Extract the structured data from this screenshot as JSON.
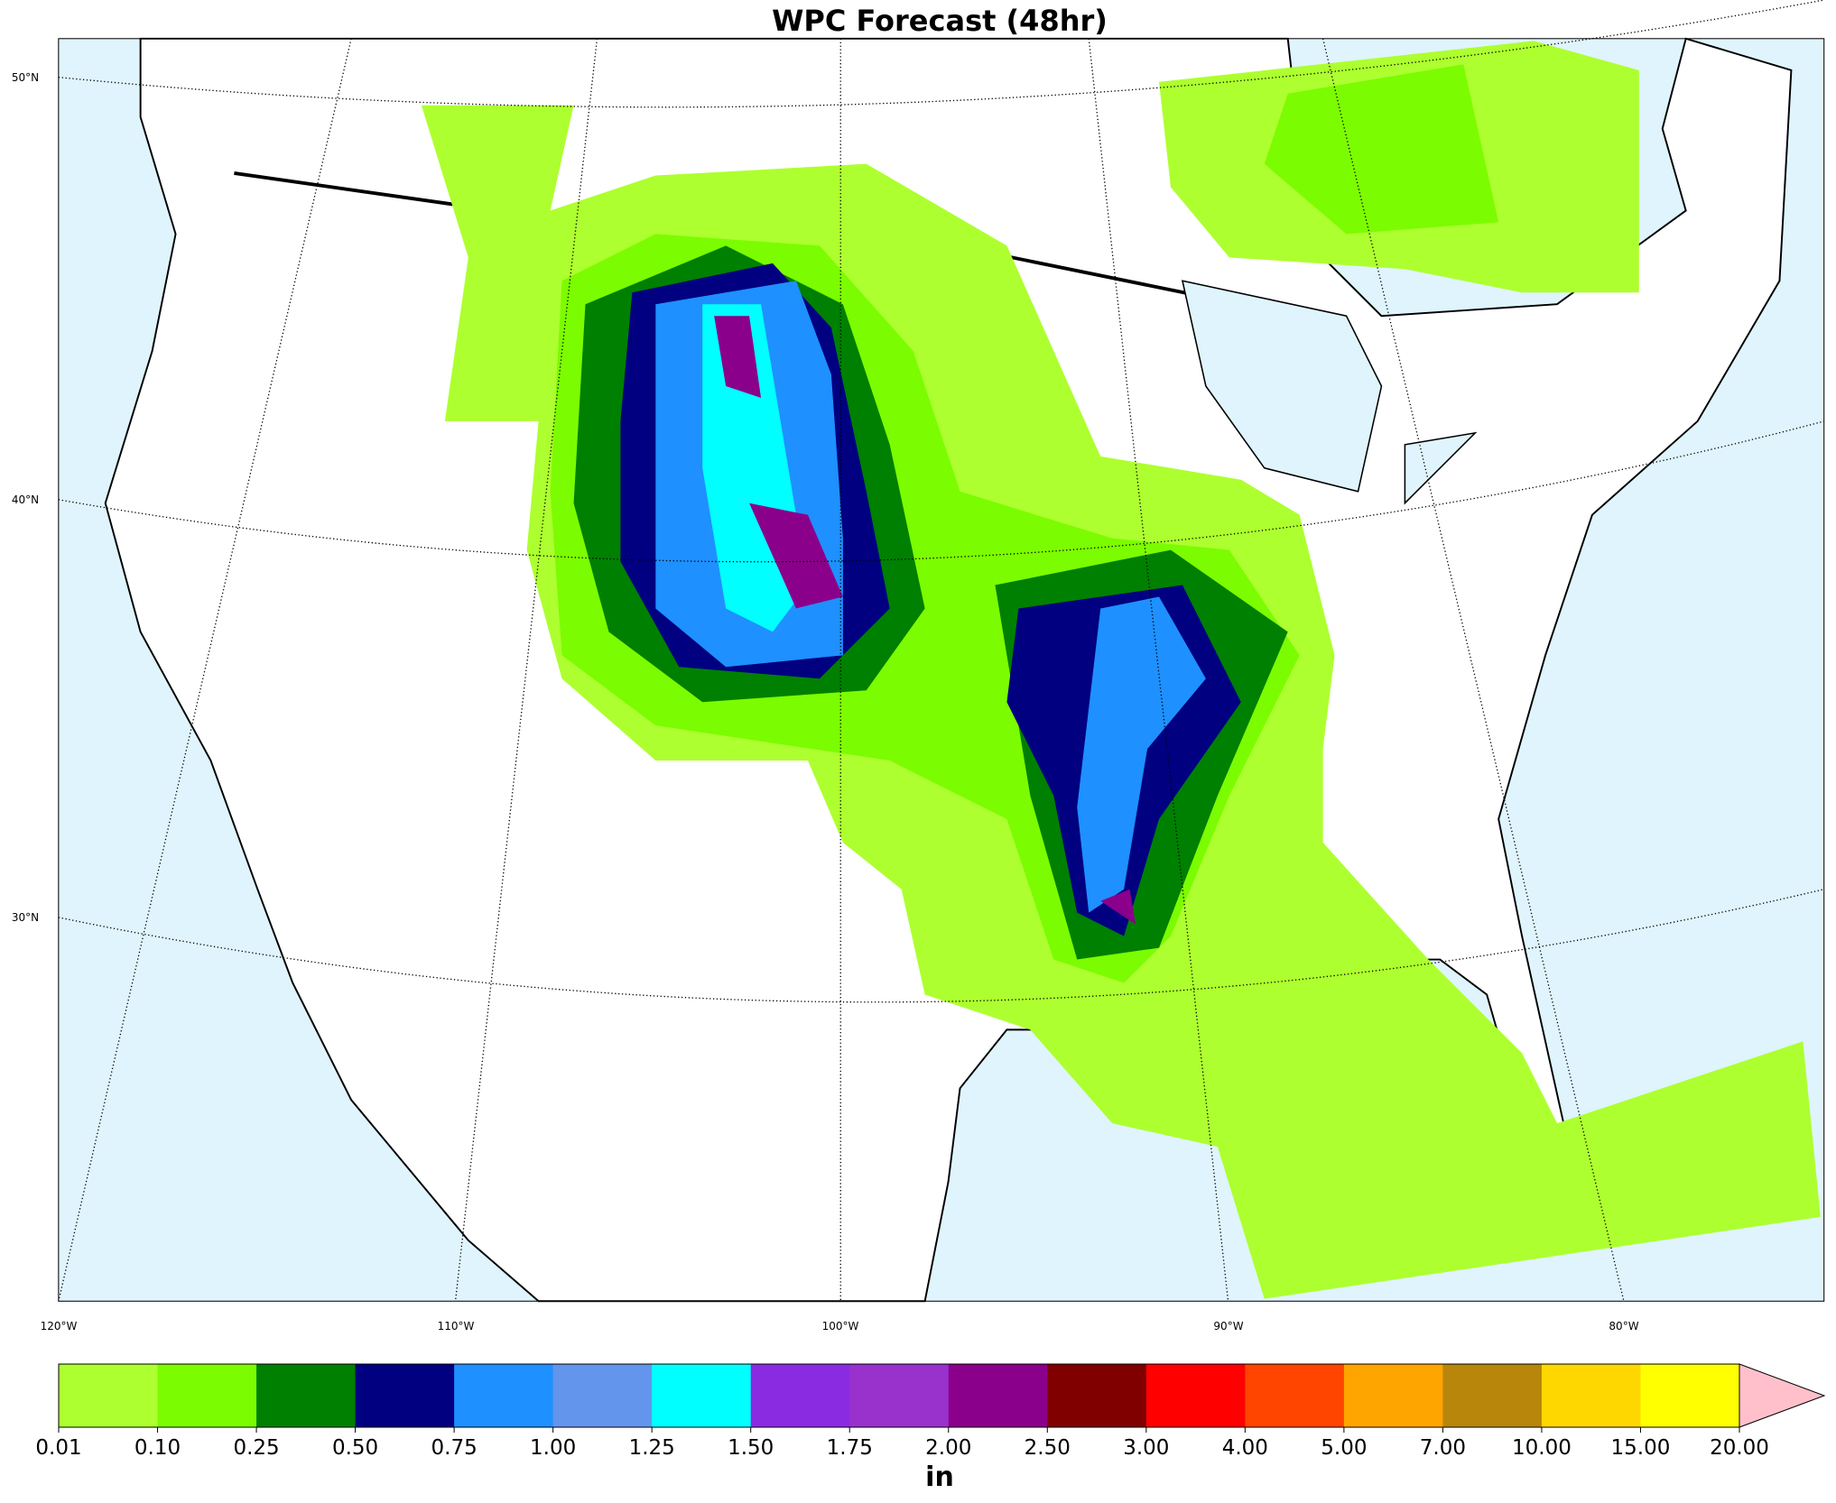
{
  "map": {
    "title": "WPC Forecast (48hr)",
    "lat_labels": [
      "50°N",
      "40°N",
      "30°N"
    ],
    "lon_labels": [
      "120°W",
      "110°W",
      "100°W",
      "90°W",
      "80°W"
    ],
    "colorbar": {
      "label": "in",
      "boundaries": [
        {
          "value": 0.01,
          "label": "0.01"
        },
        {
          "value": 0.1,
          "label": "0.10"
        },
        {
          "value": 0.25,
          "label": "0.25"
        },
        {
          "value": 0.5,
          "label": "0.50"
        },
        {
          "value": 0.75,
          "label": "0.75"
        },
        {
          "value": 1,
          "label": "1.00"
        },
        {
          "value": 1.25,
          "label": "1.25"
        },
        {
          "value": 1.5,
          "label": "1.50"
        },
        {
          "value": 1.75,
          "label": "1.75"
        },
        {
          "value": 2,
          "label": "2.00"
        },
        {
          "value": 2.5,
          "label": "2.50"
        },
        {
          "value": 3,
          "label": "3.00"
        },
        {
          "value": 4,
          "label": "4.00"
        },
        {
          "value": 5,
          "label": "5.00"
        },
        {
          "value": 7,
          "label": "7.00"
        },
        {
          "value": 10,
          "label": "10.00"
        },
        {
          "value": 15,
          "label": "15.00"
        },
        {
          "value": 20,
          "label": "20.00"
        }
      ],
      "colors": [
        "#adff2f",
        "#7cfc00",
        "#008000",
        "#000080",
        "#1e90ff",
        "#6495ed",
        "#00ffff",
        "#8a2be2",
        "#9932cc",
        "#8b008b",
        "#800000",
        "#ff0000",
        "#ff4500",
        "#ffa500",
        "#b8860b",
        "#ffd700",
        "#ffff00"
      ],
      "extend_color": "#ffc0cb"
    }
  }
}
